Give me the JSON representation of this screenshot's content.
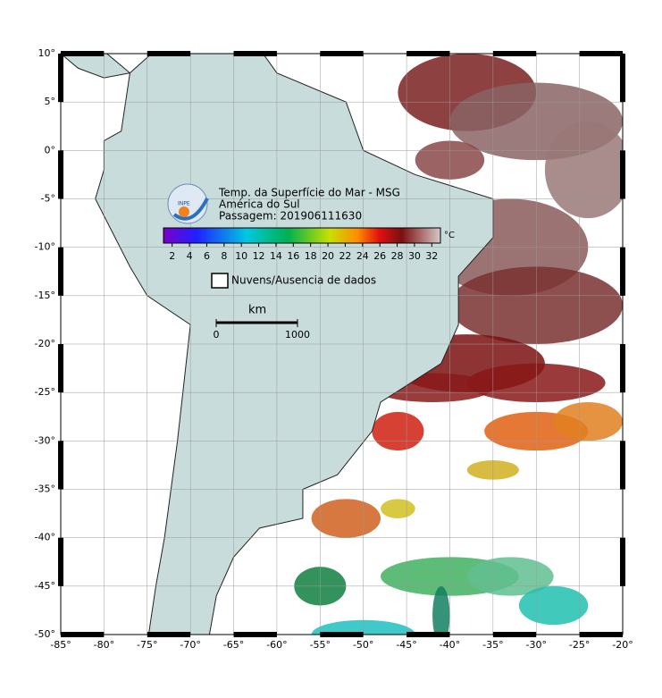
{
  "map": {
    "title": "Temp. da Superfície do Mar - MSG",
    "region": "América do Sul",
    "pass": "Passagem: 201906111630",
    "logo": "INPE",
    "xlim": [
      -85,
      -20
    ],
    "ylim": [
      -50,
      10
    ],
    "xticks": [
      {
        "value": -85,
        "label": "-85°"
      },
      {
        "value": -80,
        "label": "-80°"
      },
      {
        "value": -75,
        "label": "-75°"
      },
      {
        "value": -70,
        "label": "-70°"
      },
      {
        "value": -65,
        "label": "-65°"
      },
      {
        "value": -60,
        "label": "-60°"
      },
      {
        "value": -55,
        "label": "-55°"
      },
      {
        "value": -50,
        "label": "-50°"
      },
      {
        "value": -45,
        "label": "-45°"
      },
      {
        "value": -40,
        "label": "-40°"
      },
      {
        "value": -35,
        "label": "-35°"
      },
      {
        "value": -30,
        "label": "-30°"
      },
      {
        "value": -25,
        "label": "-25°"
      },
      {
        "value": -20,
        "label": "-20°"
      }
    ],
    "yticks": [
      {
        "value": 10,
        "label": "10°"
      },
      {
        "value": 5,
        "label": "5°"
      },
      {
        "value": 0,
        "label": "0°"
      },
      {
        "value": -5,
        "label": "-5°"
      },
      {
        "value": -10,
        "label": "-10°"
      },
      {
        "value": -15,
        "label": "-15°"
      },
      {
        "value": -20,
        "label": "-20°"
      },
      {
        "value": -25,
        "label": "-25°"
      },
      {
        "value": -30,
        "label": "-30°"
      },
      {
        "value": -35,
        "label": "-35°"
      },
      {
        "value": -40,
        "label": "-40°"
      },
      {
        "value": -45,
        "label": "-45°"
      },
      {
        "value": -50,
        "label": "-50°"
      }
    ],
    "colorbar": {
      "range": [
        1,
        33
      ],
      "ticks": [
        2,
        4,
        6,
        8,
        10,
        12,
        14,
        16,
        18,
        20,
        22,
        24,
        26,
        28,
        30,
        32
      ],
      "unit": "°C"
    },
    "legend": "Nuvens/Ausencia de dados",
    "scale": {
      "unit": "km",
      "ticks": [
        0,
        1000
      ]
    }
  }
}
